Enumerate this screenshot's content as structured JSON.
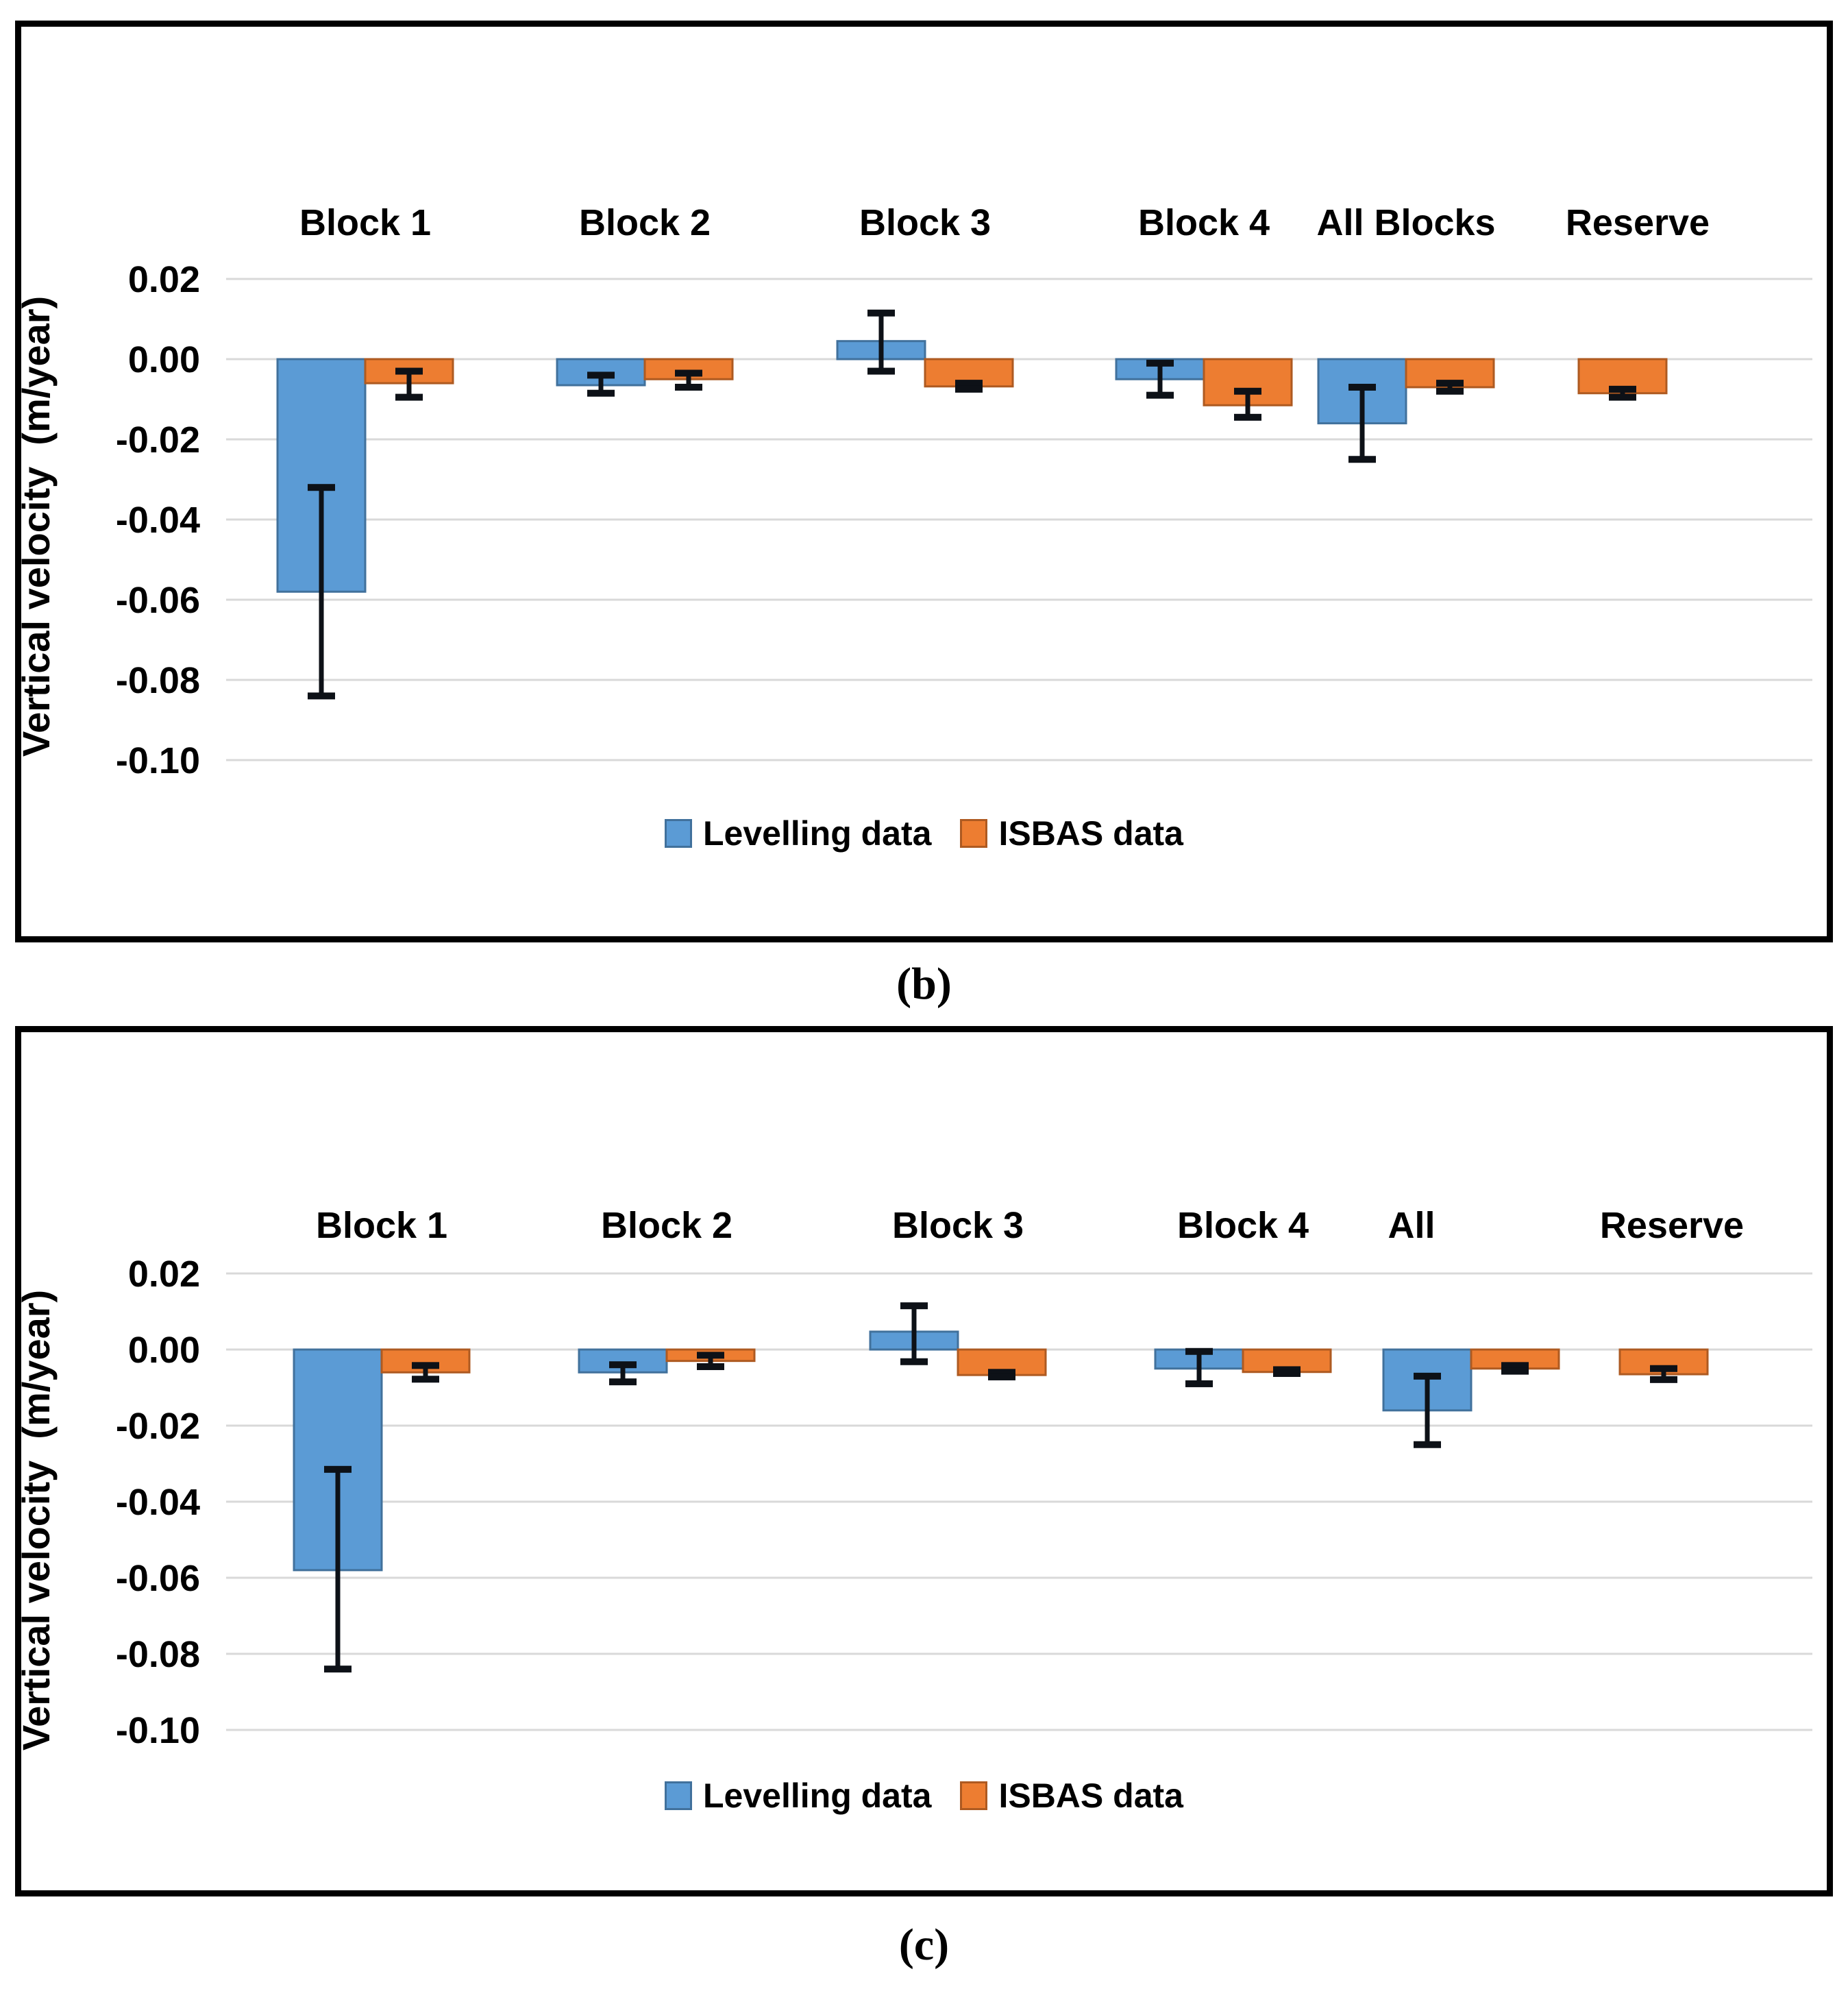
{
  "figure": {
    "panel_b_caption": "(b)",
    "panel_c_caption": "(c)"
  },
  "colors": {
    "levelling_fill": "#5B9BD5",
    "levelling_stroke": "#41719C",
    "isbas_fill": "#ED7D31",
    "isbas_stroke": "#AE5A21",
    "gridline": "#D9D9D9",
    "error_bar": "#0D1117",
    "text": "#000000"
  },
  "chart_data": [
    {
      "id": "panel-b",
      "type": "bar",
      "title": "",
      "xlabel": "",
      "ylabel": "Vertical velocity  (m/year)",
      "grid": true,
      "legend_position": "bottom",
      "ylim": [
        -0.113,
        0.027
      ],
      "yticks": [
        0.02,
        0.0,
        -0.02,
        -0.04,
        -0.06,
        -0.08,
        -0.1
      ],
      "ytick_labels": [
        "0.02",
        "0.00",
        "-0.02",
        "-0.04",
        "-0.06",
        "-0.08",
        "-0.10"
      ],
      "categories": [
        "Block 1",
        "Block 2",
        "Block 3",
        "Block 4",
        "All Blocks",
        "Reserve"
      ],
      "series": [
        {
          "name": "Levelling data",
          "fill": "#5B9BD5",
          "stroke": "#41719C",
          "values": [
            -0.058,
            -0.0065,
            0.0045,
            -0.005,
            -0.016,
            null
          ],
          "error_low": [
            -0.084,
            -0.0085,
            -0.003,
            -0.009,
            -0.025,
            null
          ],
          "error_high": [
            -0.032,
            -0.004,
            0.0115,
            -0.001,
            -0.007,
            null
          ]
        },
        {
          "name": "ISBAS data",
          "fill": "#ED7D31",
          "stroke": "#AE5A21",
          "values": [
            -0.006,
            -0.005,
            -0.0068,
            -0.0115,
            -0.007,
            -0.0085
          ],
          "error_low": [
            -0.0095,
            -0.007,
            -0.0075,
            -0.0145,
            -0.008,
            -0.0095
          ],
          "error_high": [
            -0.003,
            -0.0035,
            -0.006,
            -0.008,
            -0.006,
            -0.0075
          ]
        }
      ]
    },
    {
      "id": "panel-c",
      "type": "bar",
      "title": "",
      "xlabel": "",
      "ylabel": "Vertical velocity  (m/year)",
      "grid": true,
      "legend_position": "bottom",
      "ylim": [
        -0.113,
        0.027
      ],
      "yticks": [
        0.02,
        0.0,
        -0.02,
        -0.04,
        -0.06,
        -0.08,
        -0.1
      ],
      "ytick_labels": [
        "0.02",
        "0.00",
        "-0.02",
        "-0.04",
        "-0.06",
        "-0.08",
        "-0.10"
      ],
      "categories": [
        "Block 1",
        "Block 2",
        "Block 3",
        "Block 4",
        "All",
        "Reserve"
      ],
      "series": [
        {
          "name": "Levelling data",
          "fill": "#5B9BD5",
          "stroke": "#41719C",
          "values": [
            -0.058,
            -0.006,
            0.0047,
            -0.005,
            -0.016,
            null
          ],
          "error_low": [
            -0.084,
            -0.0085,
            -0.0032,
            -0.009,
            -0.025,
            null
          ],
          "error_high": [
            -0.0315,
            -0.004,
            0.0115,
            -0.0005,
            -0.007,
            null
          ]
        },
        {
          "name": "ISBAS data",
          "fill": "#ED7D31",
          "stroke": "#AE5A21",
          "values": [
            -0.006,
            -0.003,
            -0.0067,
            -0.0059,
            -0.005,
            -0.0065
          ],
          "error_low": [
            -0.0078,
            -0.0045,
            -0.0072,
            -0.0063,
            -0.0057,
            -0.0079
          ],
          "error_high": [
            -0.0042,
            -0.0015,
            -0.006,
            -0.0053,
            -0.0042,
            -0.005
          ]
        }
      ]
    }
  ]
}
